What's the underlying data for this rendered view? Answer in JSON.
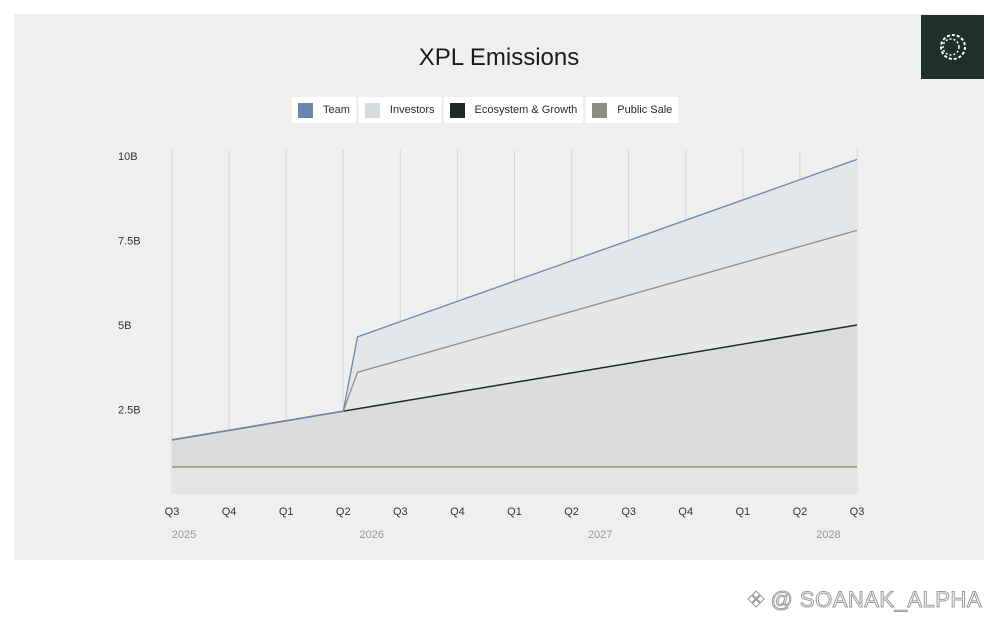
{
  "chart_data": {
    "type": "area",
    "title": "XPL Emissions",
    "y_ticks": [
      "10B",
      "7.5B",
      "5B",
      "2.5B"
    ],
    "y_tick_values": [
      10,
      7.5,
      5,
      2.5
    ],
    "ylim": [
      0,
      10
    ],
    "x_quarters": [
      "Q3",
      "Q4",
      "Q1",
      "Q2",
      "Q3",
      "Q4",
      "Q1",
      "Q2",
      "Q3",
      "Q4",
      "Q1",
      "Q2",
      "Q3"
    ],
    "x_years": [
      {
        "label": "2025",
        "at_index": 0
      },
      {
        "label": "2026",
        "at_index": 3.5
      },
      {
        "label": "2027",
        "at_index": 7.5
      },
      {
        "label": "2028",
        "at_index": 11.5
      }
    ],
    "legend": [
      {
        "name": "Team",
        "color": "#6b86ad"
      },
      {
        "name": "Investors",
        "color": "#d9dcde"
      },
      {
        "name": "Ecosystem & Growth",
        "color": "#1d2c27"
      },
      {
        "name": "Public Sale",
        "color": "#8c8c80"
      }
    ],
    "series": [
      {
        "name": "Public Sale",
        "x": [
          0,
          12
        ],
        "cumulative": [
          0.8,
          0.8
        ]
      },
      {
        "name": "Ecosystem & Growth",
        "x": [
          0,
          3,
          12
        ],
        "cumulative": [
          1.6,
          2.45,
          5.0
        ]
      },
      {
        "name": "Investors",
        "x": [
          0,
          3,
          3.25,
          12
        ],
        "cumulative": [
          1.6,
          2.45,
          3.6,
          7.8
        ]
      },
      {
        "name": "Team",
        "x": [
          0,
          3,
          3.25,
          12
        ],
        "cumulative": [
          1.6,
          2.45,
          4.65,
          9.9
        ]
      }
    ],
    "grid": true,
    "legend_position": "top-center"
  },
  "watermark": "@ SOANAK_ALPHA",
  "colors": {
    "card_bg": "#efefee",
    "logo_bg": "#1d3029",
    "grid": "#d6d6d6"
  }
}
